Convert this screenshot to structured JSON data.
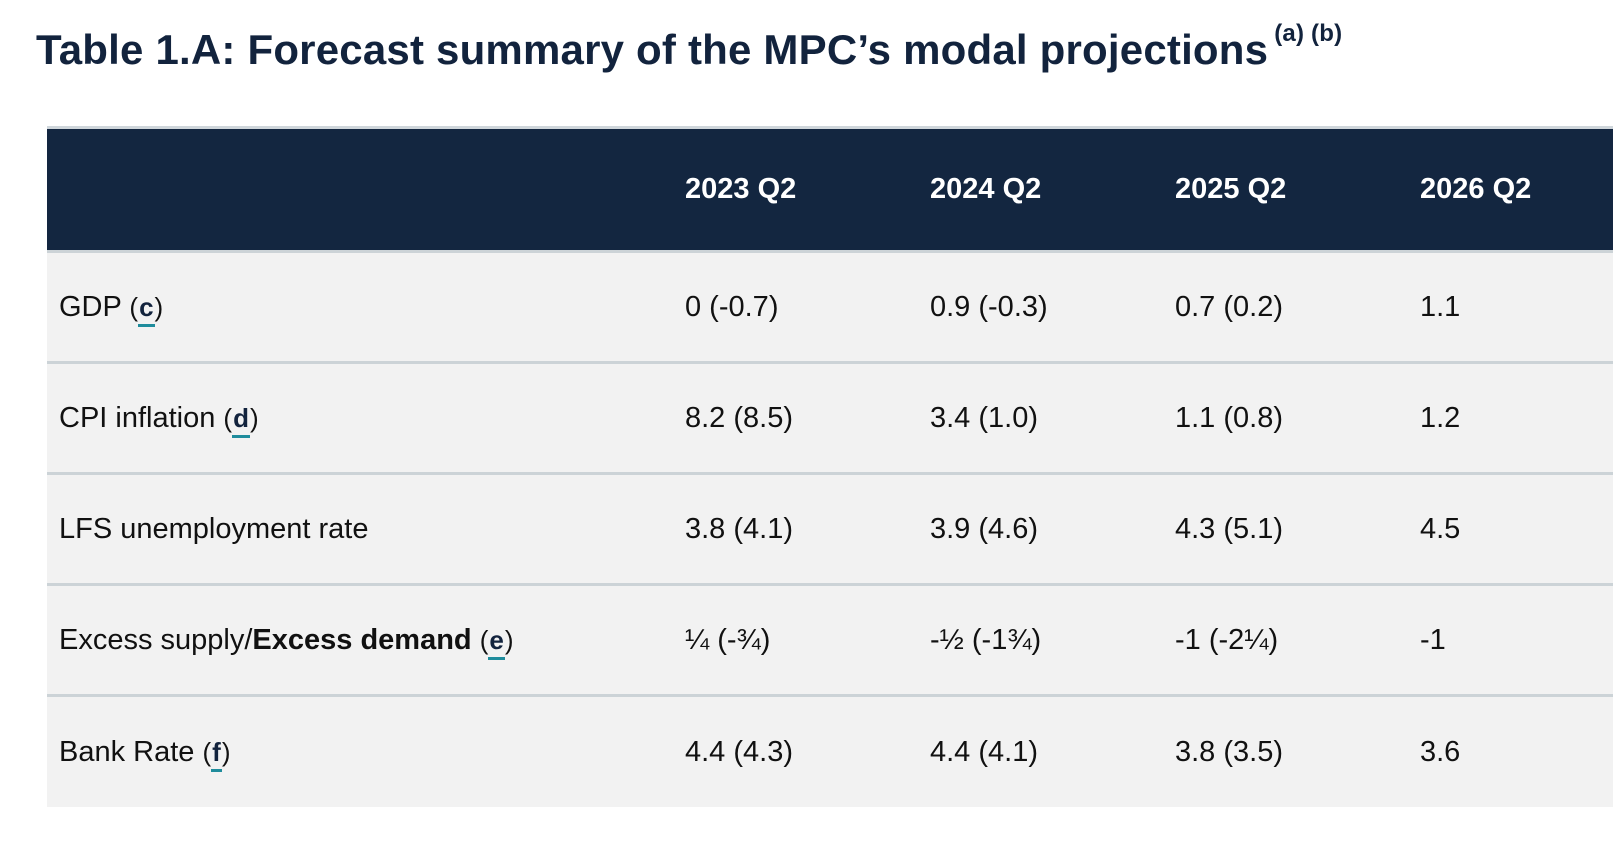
{
  "title": {
    "text": "Table 1.A: Forecast summary of the MPC’s modal projections",
    "footnote_refs": "(a) (b)"
  },
  "table": {
    "headers": [
      "",
      "2023 Q2",
      "2024 Q2",
      "2025 Q2",
      "2026 Q2"
    ],
    "rows": [
      {
        "label": "GDP",
        "label_bold": "",
        "footnote": "c",
        "values": [
          "0 (-0.7)",
          "0.9 (-0.3)",
          "0.7 (0.2)",
          "1.1"
        ]
      },
      {
        "label": "CPI inflation",
        "label_bold": "",
        "footnote": "d",
        "values": [
          "8.2 (8.5)",
          "3.4 (1.0)",
          "1.1 (0.8)",
          "1.2"
        ]
      },
      {
        "label": "LFS unemployment rate",
        "label_bold": "",
        "footnote": "",
        "values": [
          "3.8 (4.1)",
          "3.9 (4.6)",
          "4.3 (5.1)",
          "4.5"
        ]
      },
      {
        "label": "Excess supply/",
        "label_bold": "Excess demand",
        "footnote": "e",
        "values": [
          "¼ (-¾)",
          "-½ (-1¾)",
          "-1 (-2¼)",
          "-1"
        ]
      },
      {
        "label": "Bank Rate",
        "label_bold": "",
        "footnote": "f",
        "values": [
          "4.4 (4.3)",
          "4.4 (4.1)",
          "3.8 (3.5)",
          "3.6"
        ]
      }
    ]
  },
  "colors": {
    "header_bg": "#132640",
    "row_bg": "#f2f2f2",
    "footnote_underline": "#1f8c9c"
  }
}
